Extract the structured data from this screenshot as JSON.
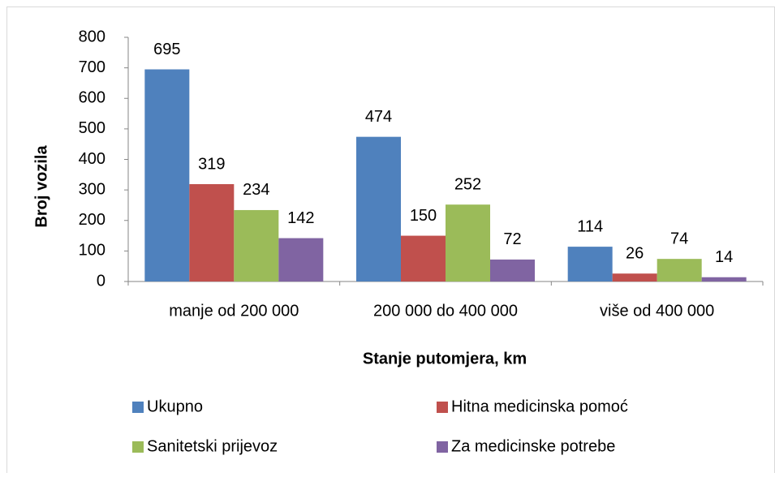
{
  "chart_data": {
    "type": "bar",
    "x_label": "Stanje putomjera, km",
    "y_label": "Broj vozila",
    "categories": [
      "manje od 200 000",
      "200 000 do 400 000",
      "više od 400 000"
    ],
    "series": [
      {
        "name": "Ukupno",
        "color": "#4f81bd",
        "values": [
          695,
          474,
          114
        ]
      },
      {
        "name": "Hitna medicinska pomoć",
        "color": "#c0504d",
        "values": [
          319,
          150,
          26
        ]
      },
      {
        "name": "Sanitetski prijevoz",
        "color": "#9bbb59",
        "values": [
          234,
          252,
          74
        ]
      },
      {
        "name": "Za medicinske potrebe",
        "color": "#8064a2",
        "values": [
          142,
          72,
          14
        ]
      }
    ],
    "ylim": [
      0,
      800
    ],
    "yticks": [
      0,
      100,
      200,
      300,
      400,
      500,
      600,
      700,
      800
    ],
    "grid": false,
    "legend": "bottom"
  }
}
